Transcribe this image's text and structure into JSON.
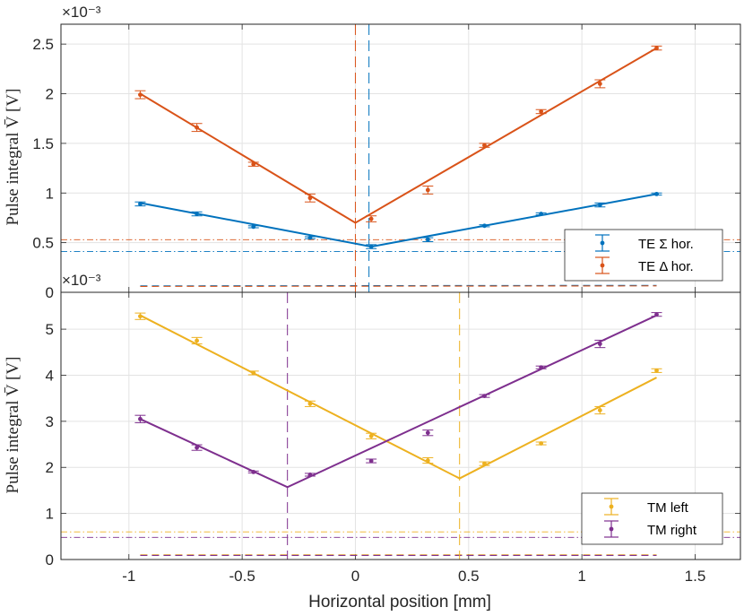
{
  "colors": {
    "blue": "#0072bd",
    "orange": "#d95319",
    "yellow": "#edb120",
    "purple": "#7e2f8e"
  },
  "chart_data": [
    {
      "type": "line",
      "panel": "top",
      "exponent_label": "×10⁻³",
      "exponent": -3,
      "ylabel": "Pulse integral V̄ [V]",
      "xlim": [
        -1.3,
        1.7
      ],
      "ylim": [
        0,
        2.7
      ],
      "xticks": [
        -1,
        -0.5,
        0,
        0.5,
        1,
        1.5
      ],
      "xtick_labels": [
        "-1",
        "-0.5",
        "0",
        "0.5",
        "1",
        "1.5"
      ],
      "yticks": [
        0,
        0.5,
        1,
        1.5,
        2,
        2.5
      ],
      "ytick_labels": [
        "0",
        "0.5",
        "1",
        "1.5",
        "2",
        "2.5"
      ],
      "series": [
        {
          "name": "TE Σ hor.",
          "color": "blue",
          "x": [
            -0.95,
            -0.7,
            -0.45,
            -0.2,
            0.07,
            0.32,
            0.57,
            0.82,
            1.08,
            1.33
          ],
          "y": [
            0.89,
            0.79,
            0.66,
            0.55,
            0.46,
            0.53,
            0.67,
            0.79,
            0.88,
            0.99
          ],
          "err": [
            0.02,
            0.02,
            0.01,
            0.01,
            0.02,
            0.02,
            0.01,
            0.01,
            0.02,
            0.01
          ],
          "fit_x": [
            -0.95,
            0.07,
            1.33
          ],
          "fit_y": [
            0.9,
            0.46,
            0.99
          ],
          "vline_x": 0.06,
          "hline_y": 0.41
        },
        {
          "name": "TE Δ hor.",
          "color": "orange",
          "x": [
            -0.95,
            -0.7,
            -0.45,
            -0.2,
            0.07,
            0.32,
            0.57,
            0.82,
            1.08,
            1.33
          ],
          "y": [
            1.99,
            1.66,
            1.29,
            0.95,
            0.74,
            1.03,
            1.48,
            1.82,
            2.1,
            2.46
          ],
          "err": [
            0.04,
            0.04,
            0.02,
            0.04,
            0.03,
            0.04,
            0.02,
            0.02,
            0.04,
            0.02
          ],
          "fit_x": [
            -0.95,
            0.0,
            1.33
          ],
          "fit_y": [
            2.0,
            0.7,
            2.46
          ],
          "vline_x": 0.0,
          "hline_y": 0.53
        }
      ],
      "baseline_x": [
        -0.95,
        1.33
      ],
      "baseline_y": [
        0.065,
        0.07
      ]
    },
    {
      "type": "line",
      "panel": "bottom",
      "exponent_label": "×10⁻³",
      "exponent": -3,
      "ylabel": "Pulse integral V̄ [V]",
      "xlabel": "Horizontal position [mm]",
      "xlim": [
        -1.3,
        1.7
      ],
      "ylim": [
        0,
        5.8
      ],
      "xticks": [
        -1,
        -0.5,
        0,
        0.5,
        1,
        1.5
      ],
      "xtick_labels": [
        "-1",
        "-0.5",
        "0",
        "0.5",
        "1",
        "1.5"
      ],
      "yticks": [
        0,
        1,
        2,
        3,
        4,
        5
      ],
      "ytick_labels": [
        "0",
        "1",
        "2",
        "3",
        "4",
        "5"
      ],
      "series": [
        {
          "name": "TM left",
          "color": "yellow",
          "x": [
            -0.95,
            -0.7,
            -0.45,
            -0.2,
            0.07,
            0.32,
            0.57,
            0.82,
            1.08,
            1.33
          ],
          "y": [
            5.28,
            4.75,
            4.05,
            3.38,
            2.68,
            2.15,
            2.08,
            2.52,
            3.24,
            4.1
          ],
          "err": [
            0.07,
            0.07,
            0.04,
            0.06,
            0.06,
            0.06,
            0.04,
            0.03,
            0.08,
            0.04
          ],
          "fit_x": [
            -0.95,
            0.46,
            1.33
          ],
          "fit_y": [
            5.3,
            1.76,
            3.95
          ],
          "vline_x": 0.46,
          "hline_y": 0.6
        },
        {
          "name": "TM right",
          "color": "purple",
          "x": [
            -0.95,
            -0.7,
            -0.45,
            -0.2,
            0.07,
            0.32,
            0.57,
            0.82,
            1.08,
            1.33
          ],
          "y": [
            3.05,
            2.43,
            1.9,
            1.84,
            2.14,
            2.75,
            3.55,
            4.17,
            4.68,
            5.32
          ],
          "err": [
            0.08,
            0.06,
            0.02,
            0.03,
            0.04,
            0.06,
            0.03,
            0.03,
            0.08,
            0.04
          ],
          "fit_x": [
            -0.95,
            -0.3,
            1.33
          ],
          "fit_y": [
            3.05,
            1.57,
            5.3
          ],
          "vline_x": -0.3,
          "hline_y": 0.48
        }
      ],
      "baseline_x": [
        -0.95,
        1.33
      ],
      "baseline_y": [
        0.1,
        0.1
      ]
    }
  ]
}
